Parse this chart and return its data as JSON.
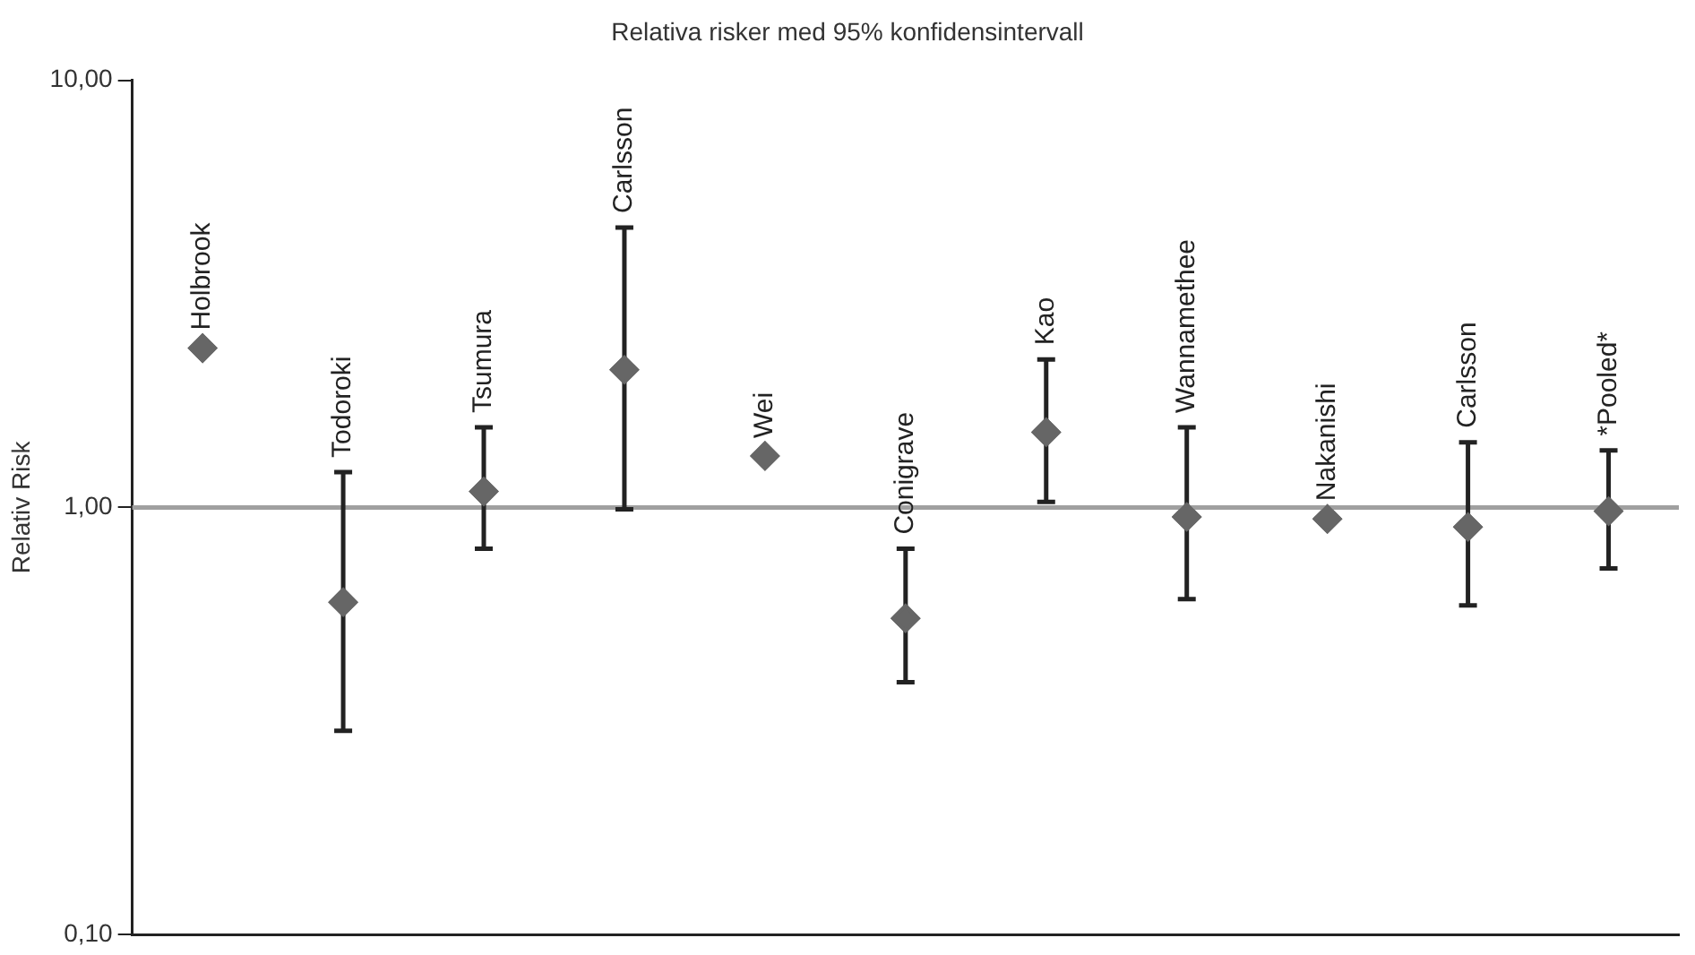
{
  "chart_data": {
    "type": "scatter",
    "title": "Relativa risker med 95% konfidensintervall",
    "ylabel": "Relativ Risk",
    "categories": [
      "Holbrook",
      "Todoroki",
      "Tsumura",
      "Carlsson",
      "Wei",
      "Conigrave",
      "Kao",
      "Wannamethee",
      "Nakanishi",
      "Carlsson",
      "*Pooled*"
    ],
    "series": [
      {
        "color": "#666666",
        "values": [
          2.36,
          0.6,
          1.09,
          2.1,
          1.32,
          0.55,
          1.5,
          0.95,
          0.94,
          0.9,
          0.98
        ],
        "errors": [
          null,
          [
            0.3,
            1.21
          ],
          [
            0.8,
            1.54
          ],
          [
            0.99,
            4.52
          ],
          null,
          [
            0.39,
            0.8
          ],
          [
            1.03,
            2.22
          ],
          [
            0.61,
            1.54
          ],
          null,
          [
            0.59,
            1.42
          ],
          [
            0.72,
            1.36
          ]
        ]
      }
    ],
    "log": "y",
    "ylim": [
      0.1,
      10
    ],
    "yticks": [
      {
        "value": 0.1,
        "label": "0,10"
      },
      {
        "value": 1,
        "label": "1,00"
      },
      {
        "value": 10,
        "label": "10,00"
      }
    ],
    "ref_lines": [
      {
        "axis": "y",
        "value": 1,
        "color": "#a0a0a0"
      }
    ],
    "marker": "diamond",
    "grid": false,
    "legend": false
  }
}
